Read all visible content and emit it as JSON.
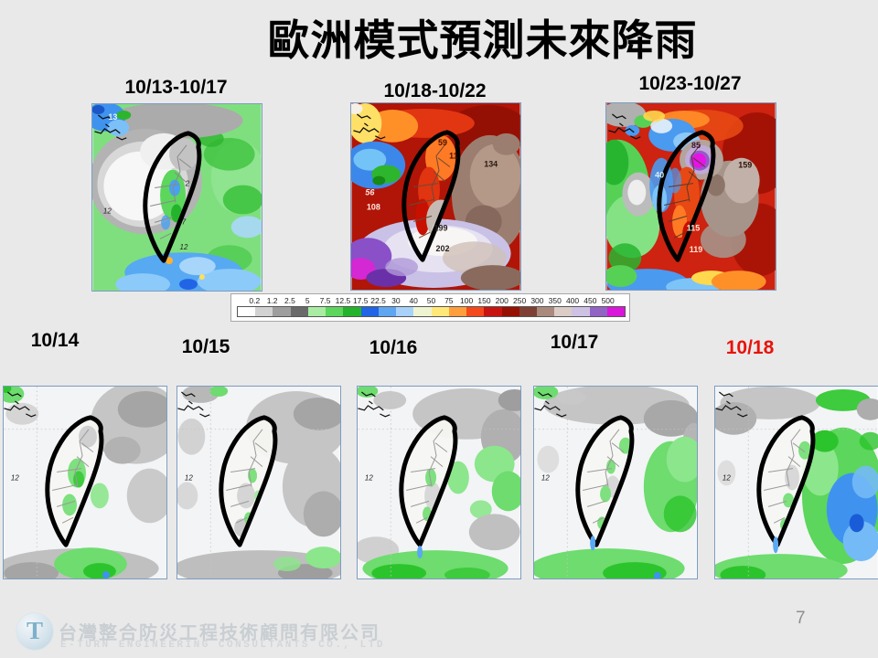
{
  "slide": {
    "title": "歐洲模式預測未來降雨",
    "page_number": "7",
    "background_color": "#e9e9e9",
    "highlight_color": "#e8120c"
  },
  "top_row": {
    "panels": [
      {
        "label": "10/13-10/17",
        "map_values": [
          "13",
          "2",
          "7",
          "12",
          "12"
        ]
      },
      {
        "label": "10/18-10/22",
        "map_values": [
          "59",
          "11",
          "134",
          "56",
          "108",
          "199",
          "202"
        ]
      },
      {
        "label": "10/23-10/27",
        "map_values": [
          "85",
          "40",
          "159",
          "115",
          "119"
        ]
      }
    ]
  },
  "colorbar": {
    "tick_labels": [
      "0.2",
      "1.2",
      "2.5",
      "5",
      "7.5",
      "12.5",
      "17.5",
      "22.5",
      "30",
      "40",
      "50",
      "75",
      "100",
      "150",
      "200",
      "250",
      "300",
      "350",
      "400",
      "450",
      "500"
    ],
    "segment_colors": [
      "#ffffff",
      "#d2d2d2",
      "#9e9e9e",
      "#6a6a6a",
      "#a9eda2",
      "#5cd65c",
      "#23b42c",
      "#2264e6",
      "#5ea6f2",
      "#a8d2fa",
      "#eef3d2",
      "#ffe878",
      "#ff9e3c",
      "#f4491c",
      "#c81410",
      "#961104",
      "#7e4034",
      "#ab8a7e",
      "#dcccc6",
      "#cdc2e4",
      "#9264c4",
      "#da16da"
    ]
  },
  "bottom_row": {
    "panels": [
      {
        "label": "10/14",
        "highlight": false,
        "map_values": [
          "12"
        ]
      },
      {
        "label": "10/15",
        "highlight": false,
        "map_values": [
          "12"
        ]
      },
      {
        "label": "10/16",
        "highlight": false,
        "map_values": [
          "12"
        ]
      },
      {
        "label": "10/17",
        "highlight": false,
        "map_values": [
          "12"
        ]
      },
      {
        "label": "10/18",
        "highlight": true,
        "map_values": [
          "12"
        ]
      }
    ]
  },
  "footer": {
    "company_name_zh": "台灣整合防災工程技術顧問有限公司",
    "company_name_en": "E-TURN ENGINEERING CONSULTANTS CO., LTD",
    "logo_letter": "T"
  }
}
